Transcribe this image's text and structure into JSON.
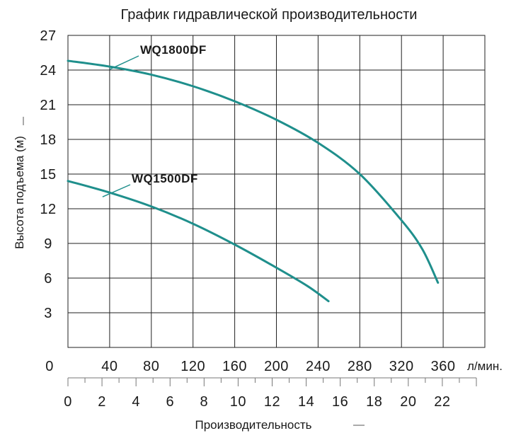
{
  "chart_data": {
    "type": "line",
    "title": "График гидравлической производительности",
    "ylabel": "Высота подъема (м)",
    "xlabel": "Производительность",
    "x_unit": "л/мин.",
    "x_zero_label": "0",
    "xlim_lpm": [
      0,
      400
    ],
    "ylim": [
      0,
      27
    ],
    "y_ticks": [
      3,
      6,
      9,
      12,
      15,
      18,
      21,
      24,
      27
    ],
    "x_ticks_lpm": [
      40,
      80,
      120,
      160,
      200,
      240,
      280,
      320,
      360
    ],
    "x2lim_m3h": [
      0,
      24
    ],
    "x2_ticks_m3h": [
      0,
      2,
      4,
      6,
      8,
      10,
      12,
      14,
      16,
      18,
      20,
      22
    ],
    "grid": true,
    "line_color": "#1f8f8c",
    "series": [
      {
        "name": "WQ1800DF",
        "x": [
          0,
          40,
          80,
          120,
          160,
          200,
          240,
          280,
          320,
          340,
          355
        ],
        "y": [
          24.8,
          24.3,
          23.6,
          22.6,
          21.3,
          19.7,
          17.7,
          15.0,
          11.0,
          8.5,
          5.6
        ]
      },
      {
        "name": "WQ1500DF",
        "x": [
          0,
          40,
          80,
          120,
          160,
          200,
          230,
          250
        ],
        "y": [
          14.4,
          13.4,
          12.2,
          10.7,
          8.9,
          6.9,
          5.3,
          4.0
        ]
      }
    ]
  }
}
